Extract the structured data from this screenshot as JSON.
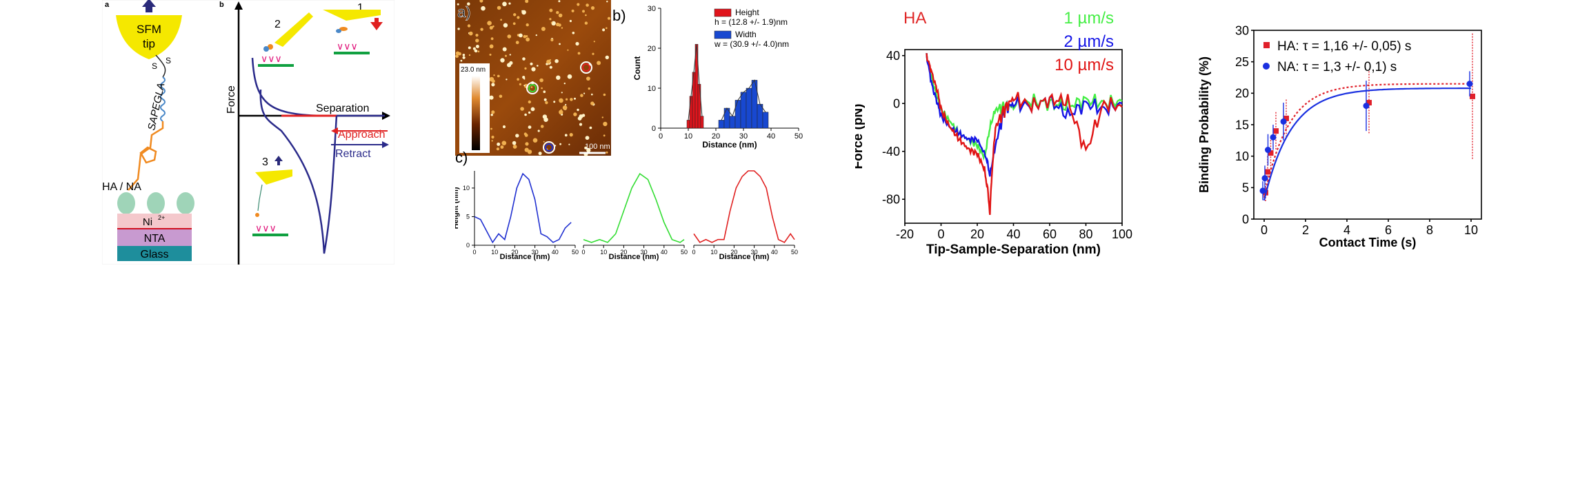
{
  "schematic": {
    "label_a": "a",
    "label_b": "b",
    "tip_line1": "SFM",
    "tip_line2": "tip",
    "linker": "SAPEGLA",
    "sulfur1": "S",
    "sulfur2": "S",
    "protein_label": "HA / NA",
    "layer_ni": "Ni",
    "layer_ni_sup": "2+",
    "layer_nta": "NTA",
    "layer_glass": "Glass",
    "axis_force": "Force",
    "axis_separation": "Separation",
    "approach": "Approach",
    "retract": "Retract",
    "step1": "1",
    "step2": "2",
    "step3": "3"
  },
  "afm": {
    "label_a": "a)",
    "label_b": "b)",
    "label_c": "c)",
    "colorbar_max": "23.0 nm",
    "scalebar": "100 nm"
  },
  "chart_data": [
    {
      "type": "bar",
      "title": "",
      "xlabel": "Distance (nm)",
      "ylabel": "Count",
      "xlim": [
        0,
        50
      ],
      "ylim": [
        0,
        30
      ],
      "xticks": [
        "0",
        "10",
        "20",
        "30",
        "40",
        "50"
      ],
      "yticks": [
        "0",
        "10",
        "20",
        "30"
      ],
      "series": [
        {
          "name": "Height",
          "color": "#e0141c",
          "note": "h = (12.8 +/- 1.9)nm",
          "bins": [
            [
              10,
              2
            ],
            [
              11,
              8
            ],
            [
              12,
              14
            ],
            [
              13,
              21
            ],
            [
              14,
              11
            ],
            [
              15,
              3
            ]
          ]
        },
        {
          "name": "Width",
          "color": "#1848d0",
          "note": "w = (30.9 +/- 4.0)nm",
          "bins": [
            [
              22,
              2
            ],
            [
              24,
              5
            ],
            [
              26,
              3
            ],
            [
              28,
              7
            ],
            [
              30,
              9
            ],
            [
              32,
              10
            ],
            [
              34,
              12
            ],
            [
              36,
              6
            ],
            [
              38,
              4
            ]
          ]
        }
      ]
    },
    {
      "type": "line",
      "title": "",
      "xlabel": "Distance (nm)",
      "ylabel": "Height (nm)",
      "xlim": [
        0,
        50
      ],
      "ylim": [
        0,
        13
      ],
      "xticks": [
        "0",
        "10",
        "20",
        "30",
        "40",
        "50"
      ],
      "yticks": [
        "0",
        "5",
        "10"
      ],
      "series": [
        {
          "color": "#1f2fd0",
          "x": [
            0,
            3,
            6,
            9,
            12,
            15,
            18,
            21,
            24,
            27,
            30,
            33,
            36,
            39,
            42,
            45,
            48
          ],
          "y": [
            5,
            4.5,
            2.5,
            0.5,
            2,
            1,
            5,
            10,
            12.5,
            11.5,
            8,
            2,
            1.5,
            0.5,
            1,
            3,
            4
          ]
        }
      ]
    },
    {
      "type": "line",
      "title": "",
      "xlabel": "Distance (nm)",
      "ylabel": "",
      "xlim": [
        0,
        50
      ],
      "ylim": [
        0,
        13
      ],
      "xticks": [
        "0",
        "10",
        "20",
        "30",
        "40",
        "50"
      ],
      "yticks": [],
      "series": [
        {
          "color": "#33dd33",
          "x": [
            0,
            4,
            8,
            12,
            16,
            20,
            24,
            28,
            32,
            36,
            40,
            44,
            48,
            50
          ],
          "y": [
            1,
            0.5,
            1,
            0.5,
            2,
            6,
            10,
            12.5,
            11.5,
            8,
            4,
            1,
            0.5,
            1
          ]
        }
      ]
    },
    {
      "type": "line",
      "title": "",
      "xlabel": "Distance (nm)",
      "ylabel": "",
      "xlim": [
        0,
        50
      ],
      "ylim": [
        0,
        13
      ],
      "xticks": [
        "0",
        "10",
        "20",
        "30",
        "40",
        "50"
      ],
      "yticks": [],
      "series": [
        {
          "color": "#e02020",
          "x": [
            0,
            3,
            6,
            9,
            12,
            15,
            18,
            21,
            24,
            27,
            30,
            33,
            36,
            39,
            42,
            45,
            48,
            50
          ],
          "y": [
            2,
            0.5,
            1,
            0.5,
            1,
            1,
            6,
            10,
            12,
            13,
            13,
            12,
            10,
            5,
            1,
            0.5,
            2,
            1
          ]
        }
      ]
    },
    {
      "type": "line",
      "title": "HA",
      "xlabel": "Tip-Sample-Separation (nm)",
      "ylabel": "Force (pN)",
      "xlim": [
        -20,
        100
      ],
      "ylim": [
        -100,
        45
      ],
      "xticks": [
        "-20",
        "0",
        "20",
        "40",
        "60",
        "80",
        "100"
      ],
      "yticks": [
        "40",
        "0",
        "-40",
        "-80"
      ],
      "series": [
        {
          "name": "1 µm/s",
          "color": "#44ee44",
          "x": [
            -8,
            -5,
            -2,
            0,
            5,
            10,
            15,
            20,
            24,
            27,
            30,
            35,
            40,
            50,
            60,
            70,
            80,
            90,
            100
          ],
          "y": [
            40,
            20,
            5,
            -5,
            -15,
            -25,
            -30,
            -35,
            -45,
            -20,
            -5,
            -3,
            -2,
            2,
            0,
            -2,
            3,
            0,
            2
          ]
        },
        {
          "name": "2 µm/s",
          "color": "#1414e6",
          "x": [
            -8,
            -5,
            -2,
            0,
            5,
            10,
            15,
            20,
            25,
            27,
            30,
            35,
            40,
            50,
            60,
            70,
            80,
            90,
            100
          ],
          "y": [
            40,
            15,
            0,
            -10,
            -20,
            -25,
            -30,
            -30,
            -45,
            -60,
            -35,
            -5,
            0,
            -2,
            3,
            -10,
            0,
            -5,
            0
          ]
        },
        {
          "name": "10 µm/s",
          "color": "#e01414",
          "x": [
            -8,
            -5,
            -2,
            0,
            5,
            10,
            15,
            20,
            24,
            26,
            27,
            28,
            30,
            35,
            40,
            50,
            60,
            70,
            80,
            90,
            100
          ],
          "y": [
            40,
            25,
            10,
            -5,
            -20,
            -30,
            -38,
            -42,
            -55,
            -75,
            -92,
            -60,
            -20,
            -5,
            5,
            -2,
            3,
            2,
            -40,
            0,
            -3
          ]
        }
      ]
    },
    {
      "type": "scatter",
      "title": "",
      "xlabel": "Contact Time (s)",
      "ylabel": "Binding Probability (%)",
      "xlim": [
        -0.5,
        10.5
      ],
      "ylim": [
        0,
        30
      ],
      "xticks": [
        "0",
        "2",
        "4",
        "6",
        "8",
        "10"
      ],
      "yticks": [
        "0",
        "5",
        "10",
        "15",
        "20",
        "25",
        "30"
      ],
      "series": [
        {
          "name": "HA: τ = 1,16 +/- 0,05) s",
          "color": "#e0202a",
          "marker": "square",
          "x": [
            0,
            0.1,
            0.25,
            0.5,
            1,
            5,
            10
          ],
          "y": [
            4.2,
            7.5,
            10.5,
            14,
            16,
            18.5,
            19.5
          ],
          "err": [
            1.5,
            2.5,
            2.5,
            3,
            3,
            5,
            10
          ],
          "fit": {
            "tau": 1.16,
            "plateau": 21.5
          }
        },
        {
          "name": "NA: τ = 1,3 +/- 0,1) s",
          "color": "#1a30e0",
          "marker": "circle",
          "x": [
            0,
            0.1,
            0.25,
            0.5,
            1,
            5,
            10
          ],
          "y": [
            4.5,
            6.5,
            11,
            13,
            15.5,
            18,
            21.5
          ],
          "err": [
            1.5,
            2,
            2.5,
            2,
            3,
            4,
            2
          ],
          "fit": {
            "tau": 1.3,
            "plateau": 20.8
          }
        }
      ]
    }
  ]
}
